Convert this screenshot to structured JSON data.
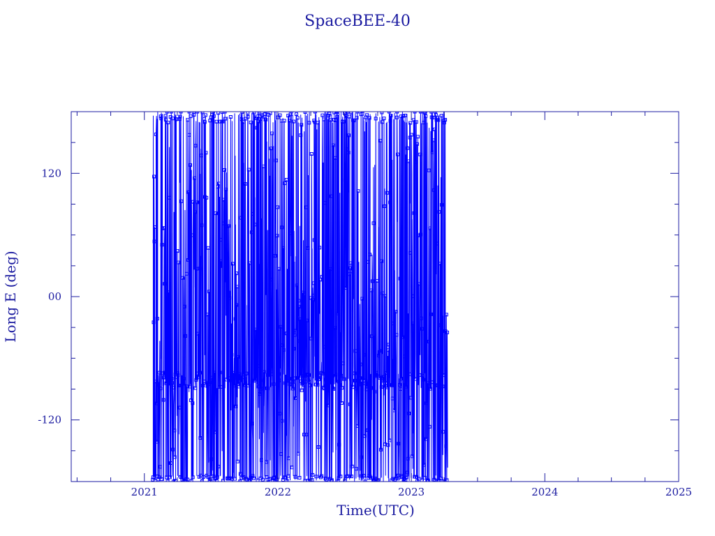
{
  "chart_data": {
    "type": "line",
    "title": "SpaceBEE-40",
    "xlabel": "Time(UTC)",
    "ylabel": "Long E (deg)",
    "x_ticks": [
      "2021",
      "2022",
      "2023",
      "2024",
      "2025"
    ],
    "y_ticks": [
      "-120",
      "00",
      "120"
    ],
    "xlim": [
      "2020-06-15",
      "2025-01-01"
    ],
    "ylim": [
      -180,
      180
    ],
    "grid": false,
    "markers": "open-square",
    "colors": {
      "series": "#0000ff",
      "axes": "#1a1aa0",
      "text": "#1a1aa0"
    },
    "series": [
      {
        "x_range": [
          "2021-01-24",
          "2023-04-10"
        ],
        "y_range": [
          -180,
          180
        ],
        "clusters": [
          {
            "from": "2021-01-24",
            "to": "2023-04-10",
            "y_center": -82,
            "y_spread": 8
          },
          {
            "from": "2021-01-24",
            "to": "2023-04-10",
            "y_center": 175,
            "y_spread": 6
          },
          {
            "from": "2021-01-24",
            "to": "2023-04-10",
            "y_center": -177,
            "y_spread": 3
          },
          {
            "from": "2021-05-01",
            "to": "2021-08-15",
            "y_center": 80,
            "y_spread": 60
          },
          {
            "from": "2022-02-01",
            "to": "2022-04-15",
            "y_center": 20,
            "y_spread": 60
          },
          {
            "from": "2023-03-20",
            "to": "2023-04-10",
            "y_center": 10,
            "y_spread": 90
          }
        ]
      }
    ]
  }
}
